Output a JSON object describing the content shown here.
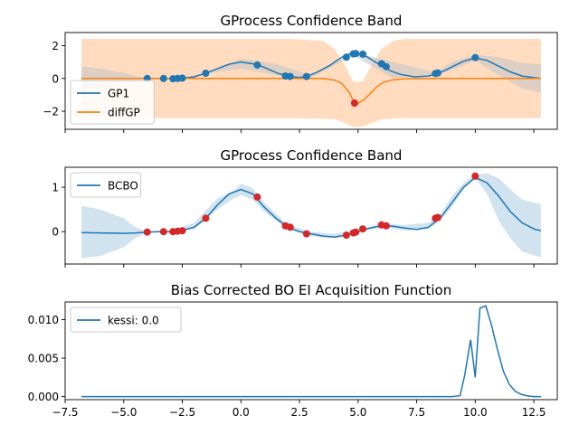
{
  "colors": {
    "blue": "#1f77b4",
    "orange": "#ff7f0e",
    "orange_band": "#ffdcbf",
    "blue_band": "#d2e3f0",
    "gray_band": "#c7c7c7",
    "red": "#d62728"
  },
  "x_ticks": [
    -7.5,
    -5.0,
    -2.5,
    0.0,
    2.5,
    5.0,
    7.5,
    10.0,
    12.5
  ],
  "x_tick_labels": [
    "−7.5",
    "−5.0",
    "−2.5",
    "0.0",
    "2.5",
    "5.0",
    "7.5",
    "10.0",
    "12.5"
  ],
  "chart_data": [
    {
      "type": "line",
      "title": "GProcess Confidence Band",
      "xlim": [
        -7.5,
        13.5
      ],
      "ylim": [
        -3.1,
        2.8
      ],
      "yticks": [
        -2,
        0,
        2
      ],
      "ytick_labels": [
        "−2",
        "0",
        "2"
      ],
      "legend": {
        "placement": "lower-left",
        "entries": [
          "GP1",
          "diffGP"
        ]
      },
      "series": [
        {
          "name": "GP1",
          "x": [
            -6.8,
            -6,
            -5,
            -4.5,
            -4,
            -3.5,
            -3.2,
            -2.9,
            -2.6,
            -2.4,
            -2,
            -1.5,
            -1,
            -0.5,
            0,
            0.5,
            0.8,
            1.2,
            1.6,
            2,
            2.2,
            2.5,
            2.8,
            3.2,
            3.8,
            4.2,
            4.5,
            4.8,
            5.1,
            5.4,
            5.8,
            6.1,
            6.4,
            6.8,
            7.4,
            8,
            8.5,
            9,
            9.5,
            10,
            10.5,
            11,
            11.5,
            12,
            12.5,
            12.8
          ],
          "y": [
            0.0,
            0.0,
            0.0,
            0.0,
            0.0,
            0.0,
            0.0,
            -0.02,
            0.0,
            0.02,
            0.1,
            0.32,
            0.6,
            0.87,
            1.0,
            0.9,
            0.8,
            0.55,
            0.3,
            0.15,
            0.1,
            0.06,
            0.12,
            0.35,
            0.8,
            1.2,
            1.45,
            1.55,
            1.5,
            1.3,
            0.95,
            0.7,
            0.45,
            0.25,
            0.1,
            0.15,
            0.35,
            0.7,
            1.05,
            1.25,
            1.1,
            0.75,
            0.4,
            0.15,
            0.05,
            0.0
          ]
        },
        {
          "name": "diffGP",
          "x": [
            -6.8,
            -2,
            2,
            3.5,
            4,
            4.3,
            4.6,
            4.8,
            5.0,
            5.2,
            5.5,
            5.8,
            6.1,
            6.5,
            7,
            8,
            12.8
          ],
          "y": [
            0.0,
            0.0,
            0.0,
            0.0,
            -0.1,
            -0.3,
            -0.8,
            -1.35,
            -1.5,
            -1.35,
            -0.95,
            -0.5,
            -0.22,
            -0.08,
            -0.02,
            0.0,
            0.0
          ]
        }
      ],
      "bands": [
        {
          "series": "diffGP",
          "x": [
            -6.8,
            -4,
            2,
            3.5,
            4,
            4.4,
            4.8,
            5.2,
            5.6,
            6,
            6.5,
            7,
            8,
            12.8
          ],
          "lower": [
            -2.42,
            -2.42,
            -2.42,
            -2.45,
            -2.5,
            -2.7,
            -2.95,
            -2.95,
            -2.7,
            -2.5,
            -2.44,
            -2.42,
            -2.42,
            -2.42
          ],
          "upper": [
            2.42,
            2.42,
            2.42,
            2.3,
            1.8,
            0.9,
            -0.2,
            -0.2,
            0.9,
            1.8,
            2.3,
            2.42,
            2.42,
            2.42
          ]
        },
        {
          "series": "GP1",
          "x": [
            -6.8,
            -6,
            -5,
            -4.2,
            -3.5,
            -2.5,
            -1.5,
            0,
            1.5,
            3,
            4.8,
            6.5,
            8.3,
            9,
            10,
            11,
            12,
            12.8
          ],
          "lower": [
            -0.75,
            -0.6,
            -0.35,
            -0.05,
            -0.02,
            0.0,
            0.3,
            0.6,
            0.2,
            0.05,
            1.4,
            0.0,
            0.25,
            0.5,
            1.1,
            0.2,
            -0.6,
            -0.85
          ],
          "upper": [
            0.75,
            0.6,
            0.35,
            0.05,
            0.02,
            0.05,
            0.35,
            1.2,
            0.9,
            0.2,
            1.6,
            1.0,
            0.35,
            1.0,
            1.45,
            1.3,
            0.95,
            0.85
          ]
        }
      ],
      "points": [
        {
          "series": "GP1",
          "x": [
            -4.0,
            -3.3,
            -2.9,
            -2.7,
            -2.5,
            -1.5,
            0.7,
            1.9,
            2.1,
            2.8,
            4.5,
            4.8,
            4.9,
            5.2,
            6.0,
            6.2,
            8.3,
            8.4,
            10.0
          ],
          "y": [
            0.0,
            0.0,
            -0.02,
            0.0,
            0.02,
            0.32,
            0.82,
            0.15,
            0.12,
            0.12,
            1.3,
            1.5,
            1.52,
            1.48,
            0.9,
            0.72,
            0.3,
            0.33,
            1.27
          ]
        },
        {
          "series": "diffGP",
          "x": [
            4.85
          ],
          "y": [
            -1.5
          ],
          "color": "red"
        }
      ]
    },
    {
      "type": "line",
      "title": "GProcess Confidence Band",
      "xlim": [
        -7.5,
        13.5
      ],
      "ylim": [
        -0.73,
        1.45
      ],
      "yticks": [
        0,
        1
      ],
      "ytick_labels": [
        "0",
        "1"
      ],
      "legend": {
        "placement": "upper-left",
        "entries": [
          "BCBO"
        ]
      },
      "series": [
        {
          "name": "BCBO",
          "x": [
            -6.8,
            -6,
            -5,
            -4.5,
            -4,
            -3.5,
            -3,
            -2.5,
            -2,
            -1.5,
            -1,
            -0.5,
            0,
            0.5,
            1,
            1.5,
            2,
            2.5,
            3,
            3.5,
            4,
            4.5,
            5,
            5.5,
            6,
            6.5,
            7,
            7.5,
            8,
            8.5,
            9,
            9.5,
            10,
            10.5,
            11,
            11.5,
            12,
            12.5,
            12.8
          ],
          "y": [
            -0.02,
            -0.03,
            -0.04,
            -0.03,
            -0.01,
            0.0,
            0.0,
            0.03,
            0.1,
            0.3,
            0.6,
            0.85,
            0.95,
            0.85,
            0.55,
            0.3,
            0.1,
            0.0,
            -0.05,
            -0.1,
            -0.12,
            -0.08,
            0.0,
            0.08,
            0.13,
            0.12,
            0.08,
            0.05,
            0.1,
            0.3,
            0.65,
            1.0,
            1.22,
            1.1,
            0.8,
            0.45,
            0.2,
            0.06,
            0.02
          ]
        }
      ],
      "bands": [
        {
          "series": "BCBO",
          "x": [
            -6.8,
            -6,
            -5,
            -4.5,
            -4,
            -3,
            -2,
            -1,
            -0.3,
            0,
            0.5,
            1,
            2,
            3,
            4,
            5,
            6,
            7,
            8,
            8.5,
            9,
            9.5,
            10,
            10.5,
            11,
            11.5,
            12,
            12.8
          ],
          "lower": [
            -0.6,
            -0.55,
            -0.35,
            -0.15,
            -0.02,
            0.0,
            0.05,
            0.5,
            0.75,
            0.82,
            0.72,
            0.45,
            0.05,
            -0.1,
            -0.15,
            -0.02,
            0.1,
            0.03,
            0.05,
            0.25,
            0.55,
            0.95,
            1.2,
            0.85,
            0.25,
            -0.15,
            -0.45,
            -0.58
          ],
          "upper": [
            0.58,
            0.5,
            0.3,
            0.1,
            0.0,
            0.02,
            0.2,
            0.75,
            0.92,
            1.08,
            0.98,
            0.65,
            0.15,
            0.0,
            -0.05,
            0.05,
            0.18,
            0.15,
            0.2,
            0.38,
            0.8,
            1.1,
            1.28,
            1.32,
            1.2,
            0.95,
            0.72,
            0.62
          ]
        }
      ],
      "points": [
        {
          "series": "BCBO",
          "color": "red",
          "x": [
            -4.0,
            -3.3,
            -2.9,
            -2.7,
            -2.5,
            -1.5,
            0.7,
            1.9,
            2.1,
            2.8,
            4.5,
            4.8,
            4.9,
            5.2,
            6.0,
            6.2,
            8.3,
            8.4,
            10.0
          ],
          "y": [
            -0.01,
            0.0,
            0.0,
            0.01,
            0.02,
            0.3,
            0.78,
            0.13,
            0.1,
            -0.05,
            -0.08,
            -0.03,
            -0.01,
            0.06,
            0.15,
            0.13,
            0.3,
            0.32,
            1.25
          ]
        }
      ]
    },
    {
      "type": "line",
      "title": "Bias Corrected BO EI Acquisition Function",
      "xlim": [
        -7.5,
        13.5
      ],
      "ylim": [
        -0.0004,
        0.0123
      ],
      "yticks": [
        0,
        0.005,
        0.01
      ],
      "ytick_labels": [
        "0.000",
        "0.005",
        "0.010"
      ],
      "legend": {
        "placement": "upper-left",
        "entries": [
          "kessi: 0.0"
        ]
      },
      "series": [
        {
          "name": "kessi: 0.0",
          "x": [
            -6.8,
            9.0,
            9.35,
            9.55,
            9.8,
            10.0,
            10.2,
            10.45,
            10.7,
            10.95,
            11.2,
            11.45,
            11.7,
            11.95,
            12.2,
            12.5,
            12.8
          ],
          "y": [
            0.0,
            0.0,
            0.0001,
            0.0028,
            0.0074,
            0.0025,
            0.0115,
            0.0118,
            0.0092,
            0.0061,
            0.0033,
            0.0016,
            0.0007,
            0.0003,
            0.0001,
            0.0,
            0.0
          ]
        }
      ]
    }
  ]
}
